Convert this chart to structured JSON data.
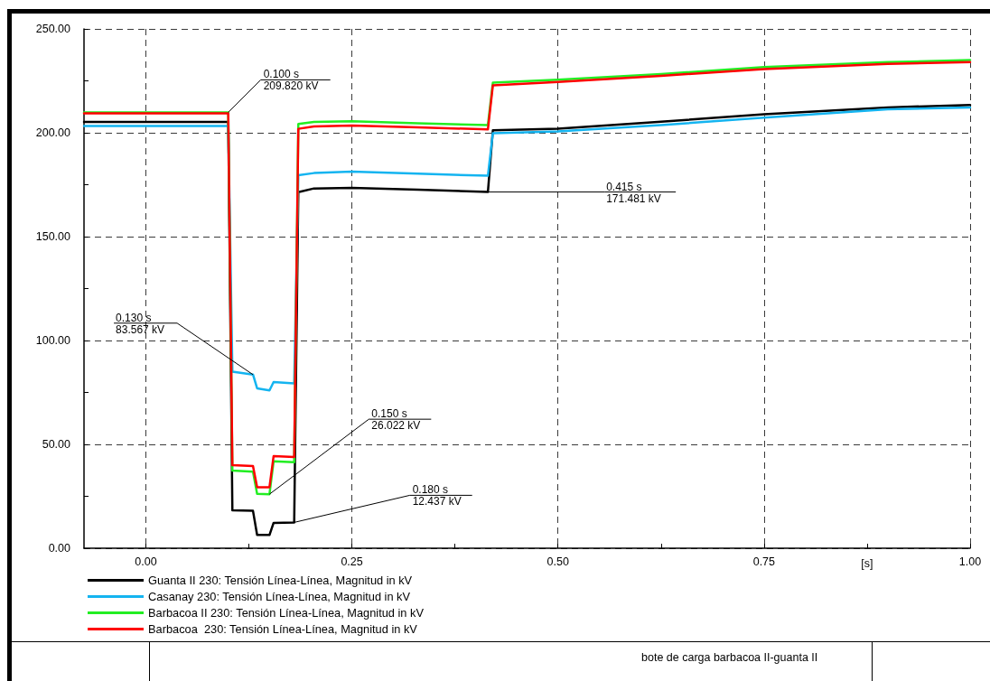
{
  "chart_data": {
    "type": "line",
    "title": "bote de carga barbacoa II-guanta II",
    "xlabel": "[s]",
    "x": [
      -0.075,
      0.1,
      0.105,
      0.13,
      0.135,
      0.15,
      0.155,
      0.18,
      0.185,
      0.204,
      0.25,
      0.33,
      0.415,
      0.421,
      0.5,
      0.625,
      0.75,
      0.9,
      1.0
    ],
    "series": [
      {
        "name": "Guanta II 230: Tensión Línea-Línea, Magnitud in kV",
        "color": "#000000",
        "values": [
          205.2,
          205.2,
          18.3,
          18.0,
          6.4,
          6.4,
          12.2,
          12.4,
          171.4,
          173.2,
          173.5,
          172.6,
          171.5,
          201.2,
          202.0,
          205.3,
          208.9,
          212.2,
          213.4
        ]
      },
      {
        "name": "Casanay 230: Tensión Línea-Línea, Magnitud in kV",
        "color": "#14b4f0",
        "values": [
          203.3,
          203.3,
          85.0,
          83.6,
          77.0,
          76.0,
          80.0,
          79.4,
          179.6,
          180.6,
          181.3,
          180.3,
          179.3,
          199.8,
          200.7,
          203.7,
          207.3,
          211.3,
          212.2
        ]
      },
      {
        "name": "Barbacoa II 230: Tensión Línea-Línea, Magnitud in kV",
        "color": "#22ee22",
        "values": [
          209.8,
          209.8,
          37.4,
          36.8,
          26.2,
          26.0,
          41.9,
          41.4,
          204.2,
          205.2,
          205.5,
          204.6,
          203.7,
          224.1,
          225.5,
          228.3,
          231.6,
          234.0,
          235.0
        ]
      },
      {
        "name": "Barbacoa  230: Tensión Línea-Línea, Magnitud in kV",
        "color": "#ff0000",
        "values": [
          209.3,
          209.3,
          40.0,
          39.6,
          29.4,
          29.4,
          44.3,
          43.9,
          201.9,
          203.0,
          203.5,
          202.6,
          201.6,
          222.8,
          224.5,
          227.4,
          230.7,
          233.2,
          234.0
        ]
      }
    ],
    "xlim": [
      -0.075,
      1.0
    ],
    "xticks": [
      {
        "value": 0,
        "label": "0.00"
      },
      {
        "value": 0.125,
        "label": null
      },
      {
        "value": 0.25,
        "label": "0.25"
      },
      {
        "value": 0.375,
        "label": null
      },
      {
        "value": 0.5,
        "label": "0.50"
      },
      {
        "value": 0.625,
        "label": null
      },
      {
        "value": 0.75,
        "label": "0.75"
      },
      {
        "value": 0.875,
        "label": null
      },
      {
        "value": 1.0,
        "label": "1.00"
      }
    ],
    "ylim": [
      0,
      250
    ],
    "yticks": [
      {
        "value": 0,
        "label": "0.00"
      },
      {
        "value": 25,
        "label": null
      },
      {
        "value": 50,
        "label": "50.00"
      },
      {
        "value": 75,
        "label": null
      },
      {
        "value": 100,
        "label": "100.00"
      },
      {
        "value": 125,
        "label": null
      },
      {
        "value": 150,
        "label": "150.00"
      },
      {
        "value": 175,
        "label": null
      },
      {
        "value": 200,
        "label": "200.00"
      },
      {
        "value": 225,
        "label": null
      },
      {
        "value": 250,
        "label": "250.00"
      }
    ],
    "grid": true,
    "legend": "bottom left",
    "marker": "none",
    "annotations": [
      {
        "text": "0.100 s\n209.820 kV",
        "x": 0.1,
        "y": 209.82
      },
      {
        "text": "0.415 s\n171.481 kV",
        "x": 0.415,
        "y": 171.481
      },
      {
        "text": "0.130 s\n83.567 kV",
        "x": 0.13,
        "y": 83.567
      },
      {
        "text": "0.150 s\n26.022 kV",
        "x": 0.15,
        "y": 26.022
      },
      {
        "text": "0.180 s\n12.437 kV",
        "x": 0.18,
        "y": 12.437
      }
    ]
  }
}
